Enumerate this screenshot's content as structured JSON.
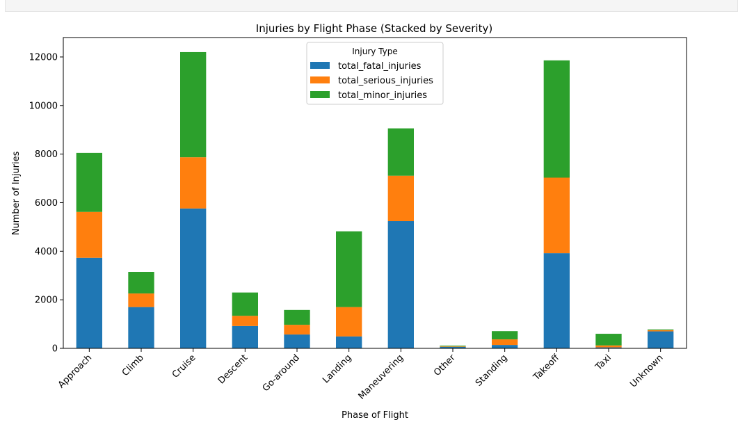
{
  "chart_data": {
    "type": "bar",
    "stacked": true,
    "title": "Injuries by Flight Phase (Stacked by Severity)",
    "xlabel": "Phase of Flight",
    "ylabel": "Number of Injuries",
    "ylim": [
      0,
      12800
    ],
    "yticks": [
      0,
      2000,
      4000,
      6000,
      8000,
      10000,
      12000
    ],
    "grid": false,
    "legend": {
      "title": "Injury Type",
      "placement": "top-center"
    },
    "categories": [
      "Approach",
      "Climb",
      "Cruise",
      "Descent",
      "Go-around",
      "Landing",
      "Maneuvering",
      "Other",
      "Standing",
      "Takeoff",
      "Taxi",
      "Unknown"
    ],
    "series": [
      {
        "name": "total_fatal_injuries",
        "color": "#1f77b4",
        "values": [
          3730,
          1700,
          5760,
          920,
          570,
          490,
          5240,
          60,
          140,
          3920,
          40,
          700
        ]
      },
      {
        "name": "total_serious_injuries",
        "color": "#ff7f0e",
        "values": [
          1890,
          560,
          2110,
          420,
          400,
          1210,
          1870,
          20,
          230,
          3110,
          80,
          50
        ]
      },
      {
        "name": "total_minor_injuries",
        "color": "#2ca02c",
        "values": [
          2430,
          890,
          4330,
          960,
          610,
          3120,
          1950,
          30,
          340,
          4830,
          480,
          30
        ]
      }
    ]
  }
}
